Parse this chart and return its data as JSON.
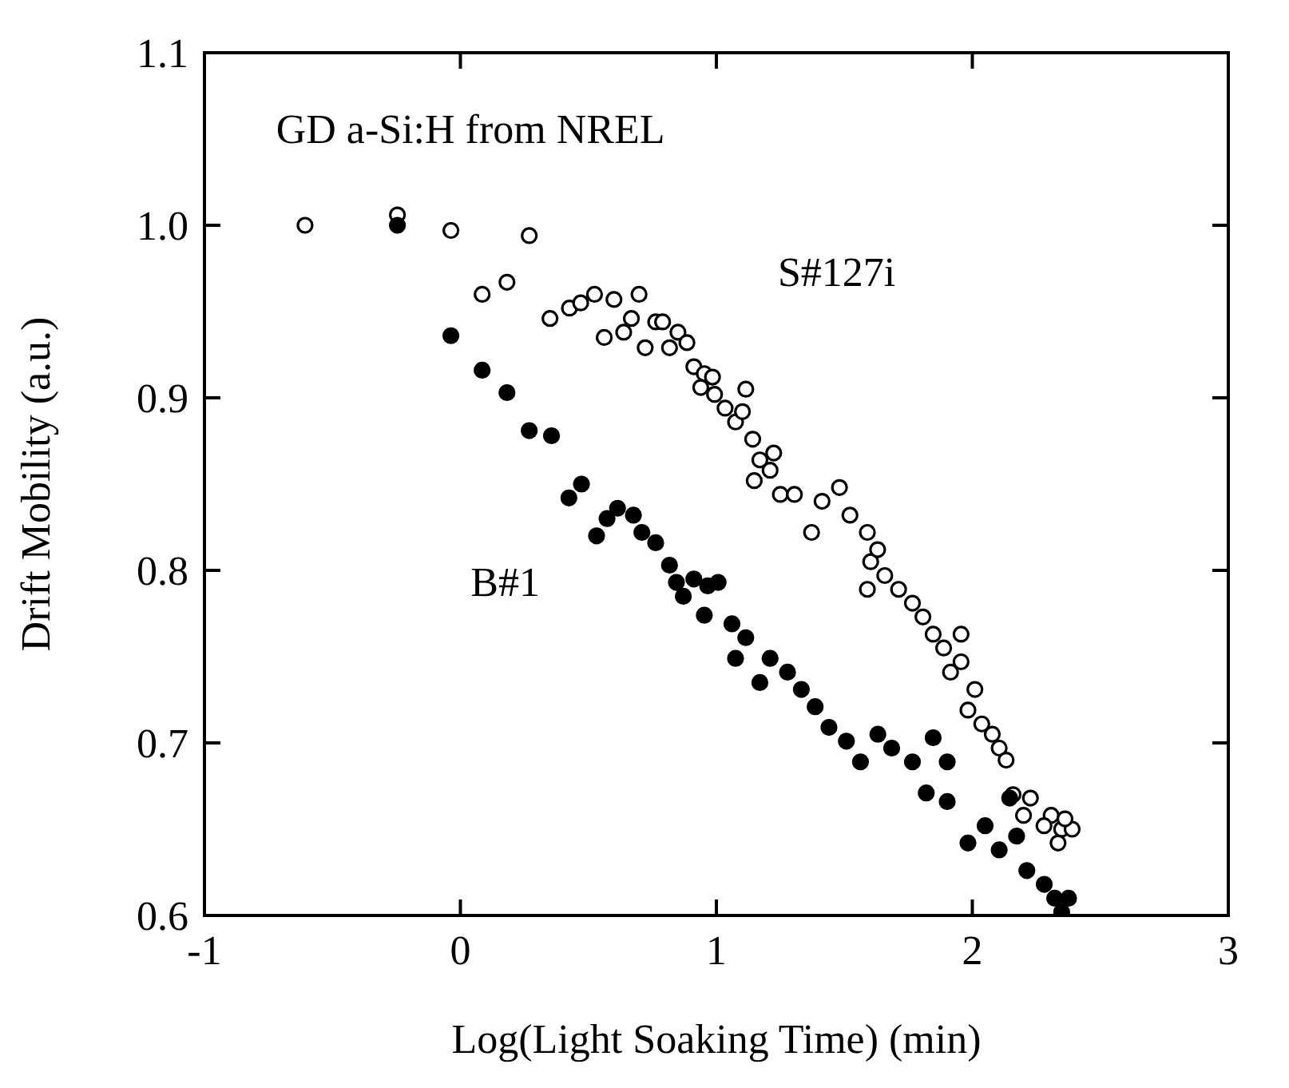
{
  "chart_data": {
    "type": "scatter",
    "xlabel": "Log(Light Soaking Time)  (min)",
    "ylabel": "Drift Mobility  (a.u.)",
    "xlim": [
      -1,
      3
    ],
    "xticks": [
      -1,
      0,
      1,
      2,
      3
    ],
    "ylim": [
      0.6,
      1.1
    ],
    "yticks": [
      0.6,
      0.7,
      0.8,
      0.9,
      {
        "value": 1.0,
        "label": "1.0"
      },
      1.1
    ],
    "marker": "circle",
    "annotations": [
      "GD a-Si:H from NREL"
    ],
    "series": [
      {
        "name": "S#127i",
        "color": "#000000",
        "x": [
          -0.607,
          -0.246,
          -0.037,
          0.269,
          0.085,
          0.182,
          0.35,
          0.426,
          0.47,
          0.524,
          0.6,
          0.698,
          0.562,
          0.638,
          0.668,
          0.722,
          0.763,
          0.79,
          0.817,
          0.85,
          0.885,
          0.912,
          0.953,
          0.985,
          0.939,
          0.993,
          1.034,
          1.115,
          1.075,
          1.102,
          1.142,
          1.17,
          1.224,
          1.148,
          1.21,
          1.25,
          1.305,
          1.372,
          1.413,
          1.481,
          1.522,
          1.59,
          1.603,
          1.63,
          1.658,
          1.59,
          1.712,
          1.766,
          1.807,
          1.847,
          1.888,
          1.956,
          1.915,
          1.956,
          2.01,
          1.983,
          2.037,
          2.078,
          2.105,
          2.132,
          2.159,
          2.227,
          2.308,
          2.349,
          2.39,
          2.362,
          2.28,
          2.335,
          2.2
        ],
        "values": [
          1.0,
          1.006,
          0.997,
          0.994,
          0.96,
          0.967,
          0.946,
          0.952,
          0.955,
          0.96,
          0.957,
          0.96,
          0.935,
          0.938,
          0.946,
          0.929,
          0.944,
          0.944,
          0.929,
          0.938,
          0.932,
          0.918,
          0.914,
          0.912,
          0.906,
          0.902,
          0.894,
          0.905,
          0.886,
          0.892,
          0.876,
          0.864,
          0.868,
          0.852,
          0.858,
          0.844,
          0.844,
          0.822,
          0.84,
          0.848,
          0.832,
          0.822,
          0.805,
          0.812,
          0.797,
          0.789,
          0.789,
          0.781,
          0.773,
          0.763,
          0.755,
          0.763,
          0.741,
          0.747,
          0.731,
          0.719,
          0.711,
          0.705,
          0.697,
          0.69,
          0.67,
          0.668,
          0.658,
          0.65,
          0.65,
          0.656,
          0.652,
          0.642,
          0.658
        ]
      },
      {
        "name": "B#1",
        "color": "#000000",
        "x": [
          -0.246,
          -0.037,
          0.085,
          0.182,
          0.269,
          0.356,
          0.424,
          0.473,
          0.532,
          0.573,
          0.614,
          0.676,
          0.709,
          0.763,
          0.817,
          0.844,
          0.871,
          0.912,
          0.966,
          1.007,
          0.953,
          1.061,
          1.075,
          1.115,
          1.17,
          1.21,
          1.278,
          1.332,
          1.386,
          1.44,
          1.508,
          1.563,
          1.631,
          1.685,
          1.766,
          1.847,
          1.902,
          1.82,
          1.902,
          1.983,
          2.05,
          2.105,
          2.146,
          2.173,
          2.213,
          2.281,
          2.322,
          2.349,
          2.376
        ],
        "values": [
          1.0,
          0.936,
          0.916,
          0.903,
          0.881,
          0.878,
          0.842,
          0.85,
          0.82,
          0.83,
          0.836,
          0.832,
          0.822,
          0.816,
          0.803,
          0.793,
          0.785,
          0.795,
          0.791,
          0.793,
          0.774,
          0.769,
          0.749,
          0.761,
          0.735,
          0.749,
          0.741,
          0.731,
          0.721,
          0.709,
          0.701,
          0.689,
          0.705,
          0.697,
          0.689,
          0.703,
          0.689,
          0.671,
          0.666,
          0.642,
          0.652,
          0.638,
          0.668,
          0.646,
          0.626,
          0.618,
          0.61,
          0.602,
          0.61
        ]
      }
    ]
  }
}
